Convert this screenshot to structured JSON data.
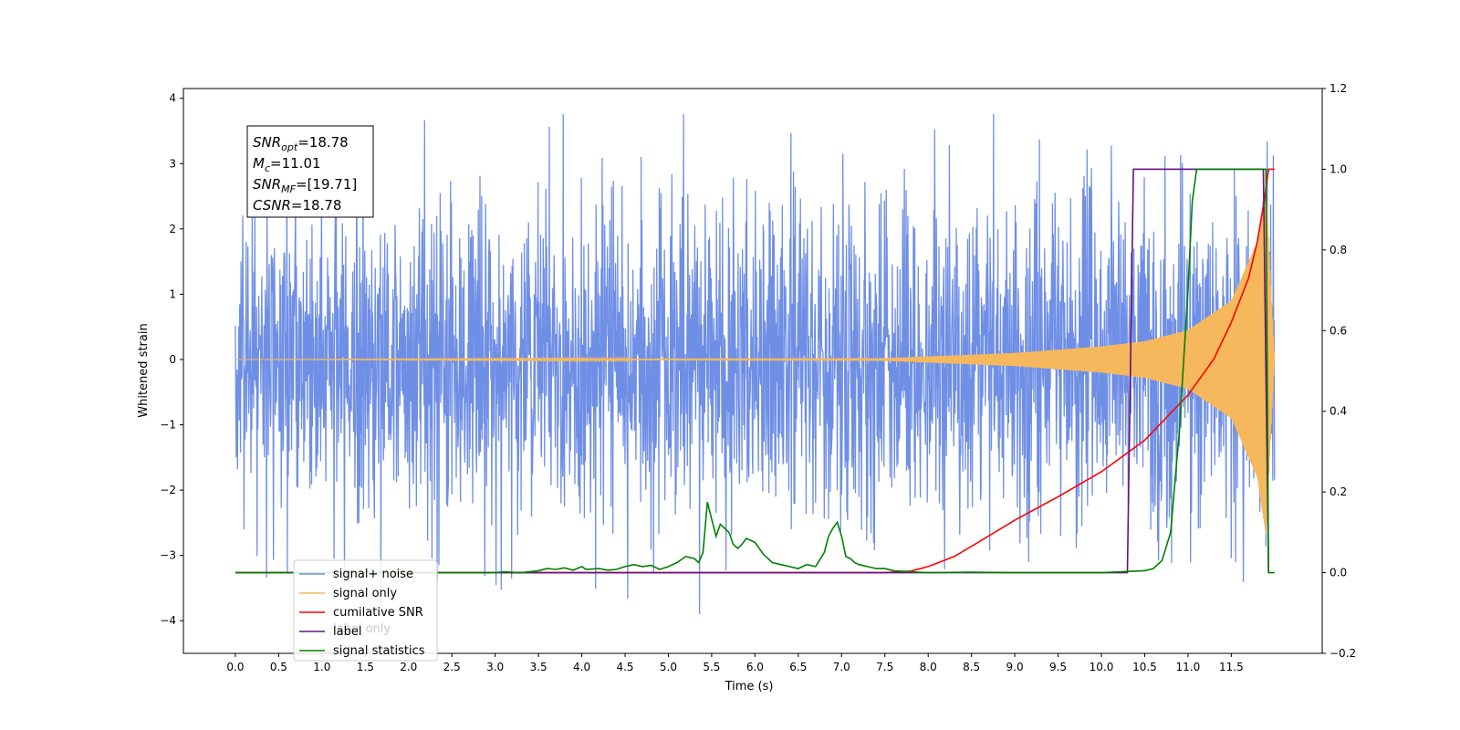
{
  "chart_data": {
    "type": "line",
    "xlabel": "Time (s)",
    "ylabel": "Whitened strain",
    "xlim": [
      -0.6,
      12.55
    ],
    "ylim": [
      -4.5,
      4.15
    ],
    "y2lim": [
      -0.2,
      1.2
    ],
    "xticks": [
      "0.0",
      "0.5",
      "1.0",
      "1.5",
      "2.0",
      "2.5",
      "3.0",
      "3.5",
      "4.0",
      "4.5",
      "5.0",
      "5.5",
      "6.0",
      "6.5",
      "7.0",
      "7.5",
      "8.0",
      "8.5",
      "9.0",
      "9.5",
      "10.0",
      "10.5",
      "11.0",
      "11.5"
    ],
    "yticks": [
      "−4",
      "−3",
      "−2",
      "−1",
      "0",
      "1",
      "2",
      "3",
      "4"
    ],
    "y2ticks": [
      "−0.2",
      "0.0",
      "0.2",
      "0.4",
      "0.6",
      "0.8",
      "1.0",
      "1.2"
    ],
    "grid": false,
    "legend_position": "lower-left",
    "annotation": {
      "lines": [
        {
          "base": "SNR",
          "sub": "opt",
          "rest": "=18.78"
        },
        {
          "base": "M",
          "sub": "c",
          "rest": "=11.01"
        },
        {
          "base": "SNR",
          "sub": "MF",
          "rest": "=[19.71]"
        },
        {
          "base": "CSNR",
          "sub": "",
          "rest": "=18.78"
        }
      ]
    },
    "series": [
      {
        "name": "signal+ noise",
        "color": "#6f8fe6",
        "axis": "left",
        "kind": "noise",
        "x_range": [
          0.0,
          12.0
        ],
        "amplitude_range": [
          -4.1,
          3.75
        ]
      },
      {
        "name": "signal only",
        "color": "#f6b85c",
        "axis": "left",
        "kind": "chirp",
        "x_range": [
          0.0,
          12.0
        ],
        "envelope": {
          "x": [
            0.0,
            7.5,
            9.0,
            10.0,
            10.5,
            11.0,
            11.5,
            11.8,
            11.9,
            12.0
          ],
          "y": [
            0.0,
            0.02,
            0.1,
            0.2,
            0.28,
            0.45,
            0.9,
            1.8,
            2.7,
            0.0
          ]
        }
      },
      {
        "name": "cumilative SNR",
        "color": "#ff0000",
        "axis": "right",
        "x": [
          0.0,
          7.5,
          7.8,
          8.0,
          8.3,
          8.6,
          9.0,
          9.5,
          10.0,
          10.5,
          11.0,
          11.3,
          11.5,
          11.7,
          11.8,
          11.88,
          11.93,
          12.0
        ],
        "y": [
          0.0,
          0.0,
          0.004,
          0.015,
          0.04,
          0.078,
          0.13,
          0.188,
          0.25,
          0.328,
          0.44,
          0.53,
          0.62,
          0.73,
          0.82,
          0.92,
          1.0,
          1.0
        ]
      },
      {
        "name": "label",
        "color": "#6a0f80",
        "axis": "right",
        "x": [
          0.0,
          10.3,
          10.37,
          11.87,
          11.9,
          11.93
        ],
        "y": [
          0.0,
          0.0,
          1.0,
          1.0,
          0.5,
          0.0
        ]
      },
      {
        "name": "signal statistics",
        "color": "#008000",
        "axis": "right",
        "x": [
          0.0,
          3.0,
          3.1,
          3.3,
          3.5,
          3.6,
          3.7,
          3.8,
          3.9,
          4.0,
          4.05,
          4.2,
          4.3,
          4.4,
          4.5,
          4.6,
          4.7,
          4.8,
          4.9,
          5.0,
          5.1,
          5.2,
          5.3,
          5.35,
          5.4,
          5.45,
          5.55,
          5.6,
          5.7,
          5.75,
          5.8,
          5.85,
          5.9,
          6.0,
          6.05,
          6.1,
          6.15,
          6.2,
          6.3,
          6.4,
          6.5,
          6.6,
          6.7,
          6.8,
          6.85,
          6.9,
          6.95,
          7.0,
          7.05,
          7.1,
          7.15,
          7.2,
          7.3,
          7.4,
          7.5,
          7.6,
          7.8,
          8.0,
          8.5,
          9.0,
          10.0,
          10.5,
          10.6,
          10.7,
          10.8,
          10.9,
          11.0,
          11.05,
          11.1,
          11.2,
          11.9,
          11.93,
          12.0
        ],
        "y": [
          0.0,
          0.0,
          0.002,
          0.0,
          0.005,
          0.01,
          0.008,
          0.012,
          0.006,
          0.015,
          0.008,
          0.01,
          0.006,
          0.008,
          0.015,
          0.02,
          0.015,
          0.018,
          0.008,
          0.015,
          0.025,
          0.04,
          0.035,
          0.025,
          0.05,
          0.175,
          0.09,
          0.12,
          0.1,
          0.07,
          0.06,
          0.07,
          0.085,
          0.075,
          0.06,
          0.045,
          0.035,
          0.025,
          0.02,
          0.015,
          0.01,
          0.02,
          0.015,
          0.05,
          0.09,
          0.11,
          0.125,
          0.09,
          0.04,
          0.035,
          0.025,
          0.02,
          0.015,
          0.01,
          0.01,
          0.005,
          0.002,
          0.0,
          0.001,
          0.0,
          0.0,
          0.005,
          0.01,
          0.03,
          0.1,
          0.35,
          0.7,
          0.92,
          1.0,
          1.0,
          1.0,
          0.0,
          0.0
        ]
      }
    ],
    "legend": [
      {
        "label": "signal+ noise",
        "color": "#6f8fe6"
      },
      {
        "label": "signal only",
        "color": "#f6b85c"
      },
      {
        "label": "cumilative SNR",
        "color": "#ff0000"
      },
      {
        "label": "label",
        "color": "#6a0f80"
      },
      {
        "label": "signal statistics",
        "color": "#008000"
      }
    ],
    "legend_ghost_text": "label only"
  }
}
